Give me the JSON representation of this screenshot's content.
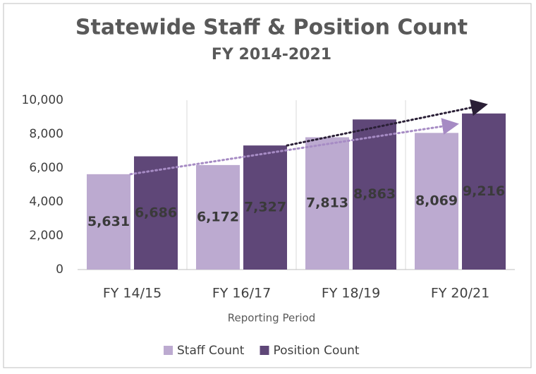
{
  "chart_data": {
    "type": "bar",
    "title": "Statewide Staff & Position Count",
    "subtitle": "FY 2014-2021",
    "x_label": "Reporting Period",
    "categories": [
      "FY 14/15",
      "FY 16/17",
      "FY 18/19",
      "FY 20/21"
    ],
    "series": [
      {
        "name": "Staff Count",
        "color": "#bcaad0",
        "values": [
          5631,
          6172,
          7813,
          8069
        ],
        "value_labels": [
          "5,631",
          "6,172",
          "7,813",
          "8,069"
        ]
      },
      {
        "name": "Position Count",
        "color": "#5f4778",
        "values": [
          6686,
          7327,
          8863,
          9216
        ],
        "value_labels": [
          "6,686",
          "7,327",
          "8,863",
          "9,216"
        ]
      }
    ],
    "ylim": [
      0,
      10000
    ],
    "yticks": [
      0,
      {
        "value": 2000,
        "label": "2,000"
      },
      {
        "value": 4000,
        "label": "4,000"
      },
      {
        "value": 6000,
        "label": "6,000"
      },
      {
        "value": 8000,
        "label": "8,000"
      },
      {
        "value": 10000,
        "label": "10,000"
      }
    ],
    "legend": "bottom"
  }
}
